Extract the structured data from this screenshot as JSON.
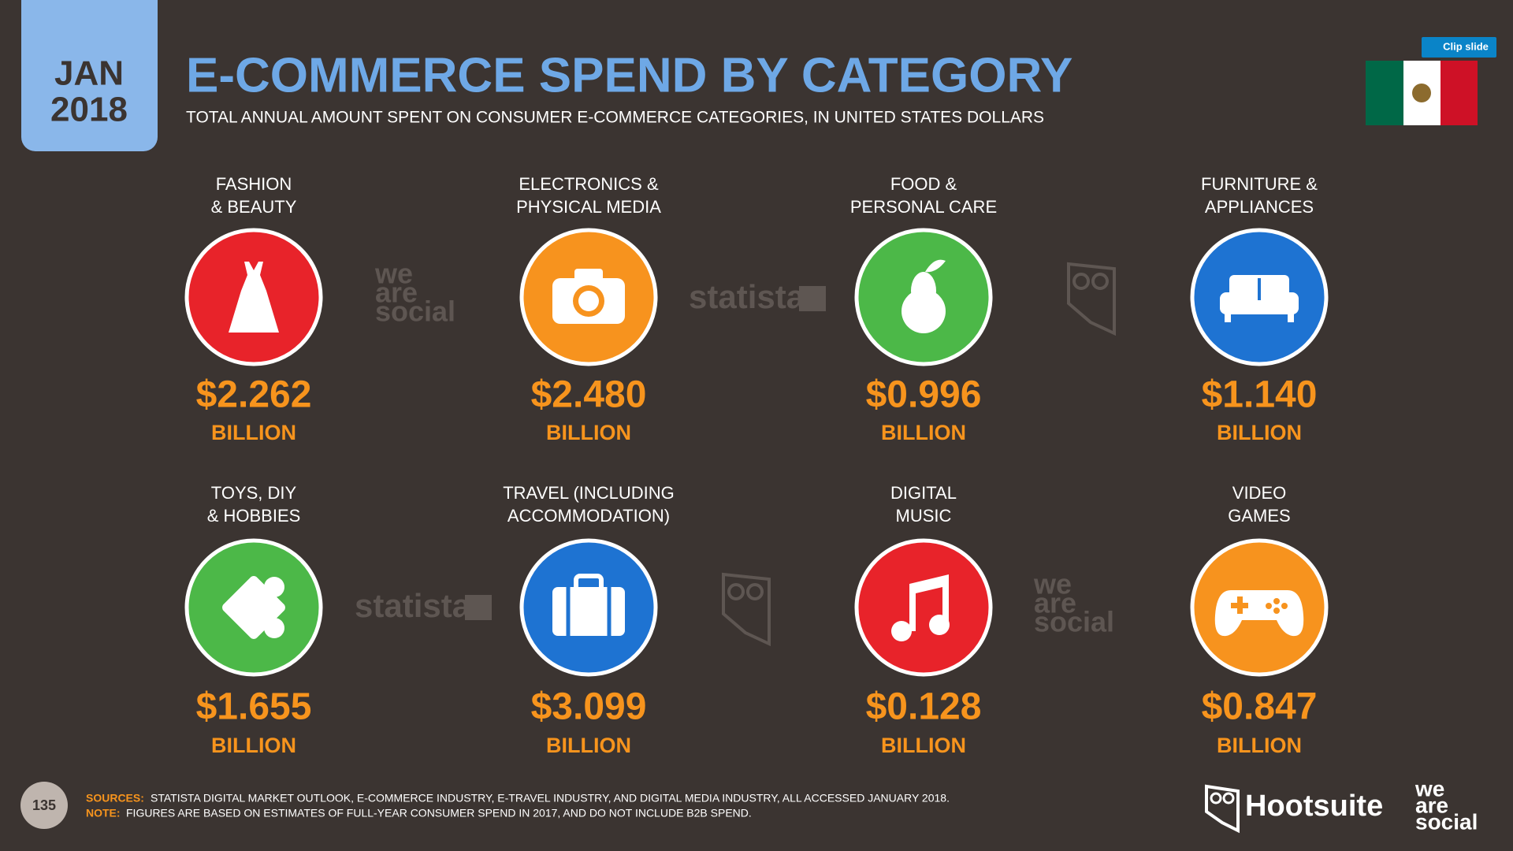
{
  "header": {
    "month": "JAN",
    "year": "2018",
    "title": "E-COMMERCE SPEND BY CATEGORY",
    "subtitle": "TOTAL ANNUAL AMOUNT SPENT ON CONSUMER E-COMMERCE CATEGORIES, IN UNITED STATES DOLLARS"
  },
  "clip_button": "Clip slide",
  "categories": [
    {
      "label": [
        "FASHION",
        "& BEAUTY"
      ],
      "value": "$2.262",
      "unit": "BILLION"
    },
    {
      "label": [
        "ELECTRONICS &",
        "PHYSICAL MEDIA"
      ],
      "value": "$2.480",
      "unit": "BILLION"
    },
    {
      "label": [
        "FOOD &",
        "PERSONAL CARE"
      ],
      "value": "$0.996",
      "unit": "BILLION"
    },
    {
      "label": [
        "FURNITURE &",
        "APPLIANCES"
      ],
      "value": "$1.140",
      "unit": "BILLION"
    },
    {
      "label": [
        "TOYS, DIY",
        "& HOBBIES"
      ],
      "value": "$1.655",
      "unit": "BILLION"
    },
    {
      "label": [
        "TRAVEL (INCLUDING",
        "ACCOMMODATION)"
      ],
      "value": "$3.099",
      "unit": "BILLION"
    },
    {
      "label": [
        "DIGITAL",
        "MUSIC"
      ],
      "value": "$0.128",
      "unit": "BILLION"
    },
    {
      "label": [
        "VIDEO",
        "GAMES"
      ],
      "value": "$0.847",
      "unit": "BILLION"
    }
  ],
  "watermarks": {
    "statista": "statista",
    "social": [
      "we",
      "are",
      "social"
    ]
  },
  "footer": {
    "page": "135",
    "sources_label": "SOURCES:",
    "sources": "STATISTA DIGITAL MARKET OUTLOOK, E-COMMERCE INDUSTRY, E-TRAVEL INDUSTRY, AND DIGITAL MEDIA INDUSTRY, ALL ACCESSED JANUARY 2018.",
    "note_label": "NOTE:",
    "note": "FIGURES ARE BASED ON ESTIMATES OF FULL-YEAR CONSUMER SPEND IN 2017, AND DO NOT INCLUDE B2B SPEND.",
    "brand": "Hootsuite"
  }
}
